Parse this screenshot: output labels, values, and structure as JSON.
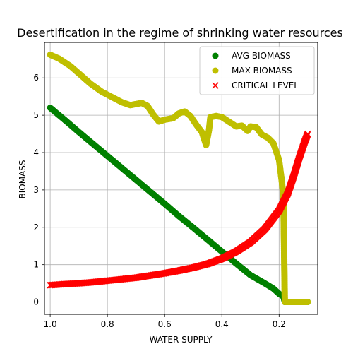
{
  "chart_data": {
    "type": "scatter",
    "title": "Desertification in the regime of shrinking water resources",
    "xlabel": "WATER SUPPLY",
    "ylabel": "BIOMASS",
    "xlim": [
      1.02,
      0.065
    ],
    "ylim": [
      -0.33,
      6.95
    ],
    "x_reversed": true,
    "grid": true,
    "legend_position": "top-right",
    "xticks": [
      {
        "value": 1.0,
        "label": "1.0"
      },
      {
        "value": 0.8,
        "label": "0.8"
      },
      {
        "value": 0.6,
        "label": "0.6"
      },
      {
        "value": 0.4,
        "label": "0.4"
      },
      {
        "value": 0.2,
        "label": "0.2"
      }
    ],
    "yticks": [
      {
        "value": 0,
        "label": "0"
      },
      {
        "value": 1,
        "label": "1"
      },
      {
        "value": 2,
        "label": "2"
      },
      {
        "value": 3,
        "label": "3"
      },
      {
        "value": 4,
        "label": "4"
      },
      {
        "value": 5,
        "label": "5"
      },
      {
        "value": 6,
        "label": "6"
      }
    ],
    "series": [
      {
        "name": "AVG BIOMASS",
        "marker": "circle",
        "color": "#008000",
        "points": [
          [
            1.0,
            5.2
          ],
          [
            0.95,
            4.88
          ],
          [
            0.9,
            4.55
          ],
          [
            0.85,
            4.23
          ],
          [
            0.8,
            3.91
          ],
          [
            0.75,
            3.59
          ],
          [
            0.7,
            3.27
          ],
          [
            0.65,
            2.95
          ],
          [
            0.6,
            2.63
          ],
          [
            0.55,
            2.3
          ],
          [
            0.5,
            1.99
          ],
          [
            0.45,
            1.67
          ],
          [
            0.4,
            1.35
          ],
          [
            0.35,
            1.03
          ],
          [
            0.3,
            0.72
          ],
          [
            0.25,
            0.5
          ],
          [
            0.22,
            0.36
          ],
          [
            0.2,
            0.22
          ],
          [
            0.185,
            0.15
          ],
          [
            0.18,
            0.0
          ],
          [
            0.15,
            0.0
          ],
          [
            0.12,
            0.0
          ],
          [
            0.1,
            0.0
          ]
        ]
      },
      {
        "name": "MAX BIOMASS",
        "marker": "circle",
        "color": "#bfbf00",
        "points": [
          [
            1.0,
            6.62
          ],
          [
            0.97,
            6.52
          ],
          [
            0.93,
            6.32
          ],
          [
            0.9,
            6.12
          ],
          [
            0.86,
            5.85
          ],
          [
            0.82,
            5.63
          ],
          [
            0.78,
            5.47
          ],
          [
            0.75,
            5.35
          ],
          [
            0.72,
            5.27
          ],
          [
            0.7,
            5.3
          ],
          [
            0.68,
            5.33
          ],
          [
            0.66,
            5.25
          ],
          [
            0.64,
            5.02
          ],
          [
            0.62,
            4.83
          ],
          [
            0.6,
            4.88
          ],
          [
            0.57,
            4.92
          ],
          [
            0.55,
            5.05
          ],
          [
            0.53,
            5.1
          ],
          [
            0.51,
            4.98
          ],
          [
            0.49,
            4.75
          ],
          [
            0.47,
            4.55
          ],
          [
            0.455,
            4.2
          ],
          [
            0.445,
            4.6
          ],
          [
            0.44,
            4.95
          ],
          [
            0.42,
            4.98
          ],
          [
            0.4,
            4.95
          ],
          [
            0.38,
            4.85
          ],
          [
            0.35,
            4.7
          ],
          [
            0.33,
            4.72
          ],
          [
            0.31,
            4.58
          ],
          [
            0.3,
            4.7
          ],
          [
            0.28,
            4.68
          ],
          [
            0.26,
            4.48
          ],
          [
            0.24,
            4.4
          ],
          [
            0.22,
            4.25
          ],
          [
            0.2,
            3.8
          ],
          [
            0.19,
            3.2
          ],
          [
            0.185,
            2.8
          ],
          [
            0.18,
            0.0
          ],
          [
            0.15,
            0.0
          ],
          [
            0.12,
            0.0
          ],
          [
            0.1,
            0.0
          ]
        ]
      },
      {
        "name": "CRITICAL LEVEL",
        "marker": "x",
        "color": "#ff0000",
        "points": [
          [
            1.0,
            0.45
          ],
          [
            0.95,
            0.48
          ],
          [
            0.9,
            0.5
          ],
          [
            0.85,
            0.53
          ],
          [
            0.8,
            0.57
          ],
          [
            0.75,
            0.61
          ],
          [
            0.7,
            0.65
          ],
          [
            0.65,
            0.71
          ],
          [
            0.6,
            0.77
          ],
          [
            0.55,
            0.84
          ],
          [
            0.5,
            0.92
          ],
          [
            0.45,
            1.02
          ],
          [
            0.4,
            1.16
          ],
          [
            0.35,
            1.35
          ],
          [
            0.3,
            1.6
          ],
          [
            0.25,
            1.95
          ],
          [
            0.2,
            2.45
          ],
          [
            0.17,
            2.9
          ],
          [
            0.15,
            3.35
          ],
          [
            0.13,
            3.85
          ],
          [
            0.11,
            4.3
          ],
          [
            0.1,
            4.5
          ]
        ]
      }
    ]
  }
}
